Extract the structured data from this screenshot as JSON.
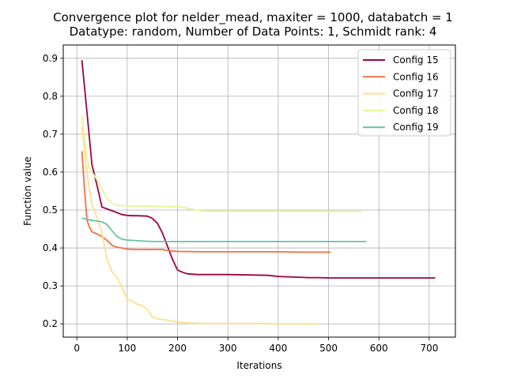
{
  "chart_data": {
    "type": "line",
    "title": "Convergence plot for nelder_mead, maxiter = 1000, databatch = 1",
    "subtitle": "Datatype: random, Number of Data Points: 1, Schmidt rank: 4",
    "xlabel": "Iterations",
    "ylabel": "Function value",
    "xlim": [
      -27,
      752
    ],
    "ylim": [
      0.165,
      0.935
    ],
    "xticks": [
      0,
      100,
      200,
      300,
      400,
      500,
      600,
      700
    ],
    "yticks": [
      0.2,
      0.3,
      0.4,
      0.5,
      0.6,
      0.7,
      0.8,
      0.9
    ],
    "grid": true,
    "legend_position": "top-right",
    "series": [
      {
        "name": "Config 15",
        "color": "#9e0142",
        "x": [
          10,
          20,
          30,
          40,
          50,
          60,
          70,
          80,
          90,
          100,
          110,
          120,
          140,
          150,
          160,
          170,
          180,
          190,
          200,
          210,
          220,
          240,
          260,
          300,
          340,
          380,
          400,
          420,
          440,
          460,
          480,
          500,
          550,
          600,
          650,
          712
        ],
        "y": [
          0.895,
          0.76,
          0.62,
          0.565,
          0.508,
          0.503,
          0.498,
          0.493,
          0.488,
          0.486,
          0.485,
          0.485,
          0.484,
          0.478,
          0.465,
          0.44,
          0.405,
          0.37,
          0.342,
          0.336,
          0.332,
          0.33,
          0.33,
          0.33,
          0.329,
          0.328,
          0.325,
          0.324,
          0.323,
          0.322,
          0.322,
          0.321,
          0.321,
          0.321,
          0.321,
          0.321
        ]
      },
      {
        "name": "Config 16",
        "color": "#f46d43",
        "x": [
          10,
          15,
          20,
          25,
          30,
          40,
          50,
          60,
          70,
          80,
          90,
          100,
          120,
          150,
          170,
          180,
          190,
          200,
          250,
          300,
          350,
          400,
          450,
          500,
          504
        ],
        "y": [
          0.655,
          0.56,
          0.475,
          0.455,
          0.443,
          0.437,
          0.43,
          0.42,
          0.407,
          0.402,
          0.4,
          0.397,
          0.396,
          0.396,
          0.396,
          0.393,
          0.392,
          0.391,
          0.39,
          0.39,
          0.39,
          0.39,
          0.389,
          0.389,
          0.389
        ]
      },
      {
        "name": "Config 17",
        "color": "#fee08b",
        "x": [
          10,
          15,
          20,
          25,
          30,
          40,
          50,
          60,
          70,
          80,
          90,
          100,
          110,
          120,
          130,
          140,
          150,
          160,
          180,
          200,
          220,
          250,
          300,
          350,
          400,
          450,
          476
        ],
        "y": [
          0.72,
          0.66,
          0.6,
          0.555,
          0.515,
          0.48,
          0.44,
          0.37,
          0.337,
          0.323,
          0.295,
          0.265,
          0.26,
          0.252,
          0.248,
          0.238,
          0.218,
          0.213,
          0.21,
          0.205,
          0.202,
          0.201,
          0.201,
          0.201,
          0.2,
          0.2,
          0.2
        ]
      },
      {
        "name": "Config 18",
        "color": "#e6f598",
        "x": [
          10,
          15,
          20,
          25,
          30,
          40,
          50,
          60,
          70,
          80,
          90,
          100,
          150,
          200,
          220,
          240,
          260,
          300,
          400,
          500,
          566
        ],
        "y": [
          0.75,
          0.69,
          0.64,
          0.61,
          0.6,
          0.58,
          0.555,
          0.53,
          0.518,
          0.513,
          0.512,
          0.511,
          0.51,
          0.509,
          0.505,
          0.499,
          0.497,
          0.497,
          0.497,
          0.497,
          0.496
        ]
      },
      {
        "name": "Config 19",
        "color": "#66c2a5",
        "x": [
          10,
          20,
          30,
          40,
          50,
          60,
          70,
          80,
          90,
          100,
          120,
          150,
          200,
          250,
          300,
          400,
          500,
          575
        ],
        "y": [
          0.479,
          0.475,
          0.473,
          0.471,
          0.469,
          0.462,
          0.445,
          0.43,
          0.423,
          0.421,
          0.419,
          0.417,
          0.417,
          0.417,
          0.417,
          0.417,
          0.417,
          0.417
        ]
      }
    ]
  }
}
